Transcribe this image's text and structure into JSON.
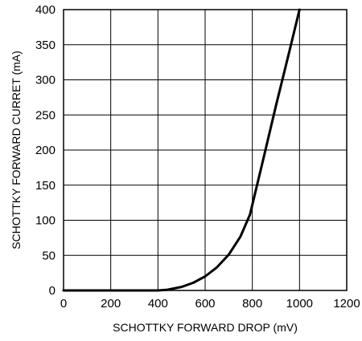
{
  "chart_data": {
    "type": "line",
    "title": "",
    "xlabel": "SCHOTTKY FORWARD DROP (mV)",
    "ylabel": "SCHOTTKY FORWARD CURRET (mA)",
    "xlim": [
      0,
      1200
    ],
    "ylim": [
      0,
      400
    ],
    "xticks": [
      0,
      200,
      400,
      600,
      800,
      1000,
      1200
    ],
    "yticks": [
      0,
      50,
      100,
      150,
      200,
      250,
      300,
      350,
      400
    ],
    "grid": true,
    "legend": "none",
    "series": [
      {
        "x": [
          0,
          200,
          400,
          440,
          500,
          550,
          600,
          650,
          700,
          750,
          790,
          800,
          850,
          900,
          950,
          1000
        ],
        "y": [
          0,
          0,
          0,
          1,
          5,
          11,
          20,
          33,
          51,
          77,
          108,
          122,
          192,
          263,
          331,
          400
        ]
      }
    ]
  }
}
